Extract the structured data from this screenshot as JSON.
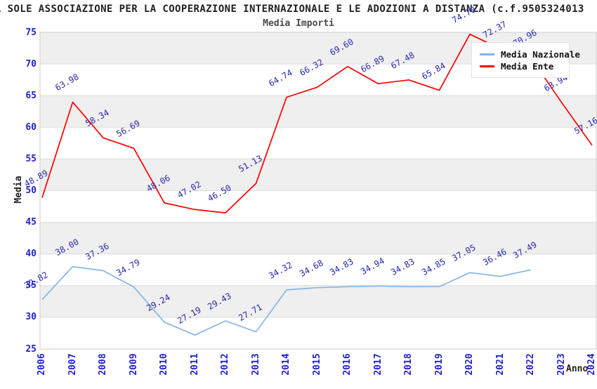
{
  "window": {
    "title_visible": "L SOLE ASSOCIAZIONE PER LA COOPERAZIONE INTERNAZIONALE E LE ADOZIONI A DISTANZA (c.f.9505324013"
  },
  "chart_data": {
    "type": "line",
    "title": "L SOLE ASSOCIAZIONE PER LA COOPERAZIONE INTERNAZIONALE E LE ADOZIONI A DISTANZA (c.f.9505324013",
    "subtitle": "Media Importi",
    "xlabel": "Anno",
    "ylabel": "Media",
    "ylim": [
      25,
      75
    ],
    "ytick_step": 5,
    "grid": "horizontal",
    "legend_position": "top-right",
    "x_categories": [
      "2006",
      "2007",
      "2008",
      "2009",
      "2010",
      "2011",
      "2012",
      "2013",
      "2014",
      "2015",
      "2016",
      "2017",
      "2018",
      "2019",
      "2020",
      "2021",
      "2022",
      "2023",
      "2024"
    ],
    "series": [
      {
        "name": "Media Nazionale",
        "color": "#85b5e6",
        "values": [
          32.82,
          38.0,
          37.36,
          34.79,
          29.24,
          27.19,
          29.43,
          27.71,
          34.32,
          34.68,
          34.83,
          34.94,
          34.83,
          34.85,
          37.05,
          36.46,
          37.49,
          null,
          null
        ]
      },
      {
        "name": "Media Ente",
        "color": "#ff0000",
        "values": [
          48.89,
          63.98,
          58.34,
          56.69,
          48.06,
          47.02,
          46.5,
          51.13,
          64.74,
          66.32,
          69.6,
          66.89,
          67.48,
          65.84,
          74.7,
          72.37,
          70.96,
          63.94,
          57.16
        ]
      }
    ],
    "style_colors": {
      "band_gray": "#efefef",
      "gridline": "#dcdcdc",
      "plot_border": "#cccccc",
      "tick_label_blue": "#2222cc",
      "data_label_blue": "#2828b0"
    }
  }
}
